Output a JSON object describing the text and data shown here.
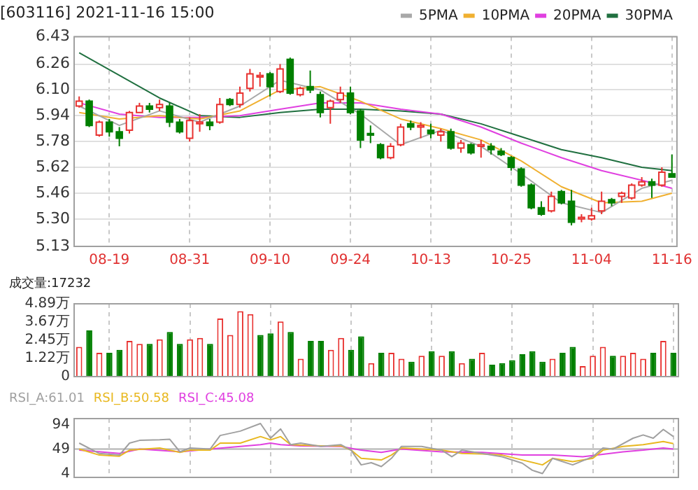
{
  "chart_data": [
    {
      "type": "candlestick",
      "title": "[603116] 2021-11-16 15:00",
      "legend": "top right",
      "grid": true,
      "categories": [
        null,
        null,
        null,
        "08-19",
        null,
        null,
        null,
        null,
        null,
        null,
        null,
        "08-31",
        null,
        null,
        null,
        null,
        null,
        null,
        null,
        "09-10",
        null,
        null,
        null,
        null,
        null,
        null,
        null,
        "09-24",
        null,
        null,
        null,
        null,
        null,
        null,
        null,
        "10-13",
        null,
        null,
        null,
        null,
        null,
        null,
        null,
        "10-25",
        null,
        null,
        null,
        null,
        null,
        null,
        null,
        "11-04",
        null,
        null,
        null,
        null,
        null,
        null,
        null,
        "11-16"
      ],
      "ylim": [
        5.13,
        6.43
      ],
      "yticks": [
        5.13,
        {
          "value": 5.3,
          "label": "5.30"
        },
        5.46,
        5.62,
        5.78,
        5.94,
        {
          "value": 6.1,
          "label": "6.10"
        },
        6.26,
        6.43
      ],
      "ohlc": [
        [
          6.0,
          6.06,
          5.99,
          6.03
        ],
        [
          6.03,
          6.04,
          5.87,
          5.88
        ],
        [
          5.82,
          5.91,
          5.81,
          5.9
        ],
        [
          5.9,
          5.92,
          5.81,
          5.84
        ],
        [
          5.84,
          5.87,
          5.75,
          5.8
        ],
        [
          5.85,
          5.97,
          5.83,
          5.96
        ],
        [
          5.96,
          6.02,
          5.96,
          6.0
        ],
        [
          6.0,
          6.02,
          5.96,
          5.98
        ],
        [
          5.99,
          6.04,
          5.97,
          6.01
        ],
        [
          6.0,
          6.02,
          5.87,
          5.9
        ],
        [
          5.9,
          5.92,
          5.83,
          5.84
        ],
        [
          5.8,
          5.93,
          5.78,
          5.91
        ],
        [
          5.89,
          5.95,
          5.84,
          5.9
        ],
        [
          5.9,
          5.92,
          5.85,
          5.88
        ],
        [
          5.9,
          6.05,
          5.89,
          6.01
        ],
        [
          6.04,
          6.05,
          6.0,
          6.01
        ],
        [
          6.01,
          6.12,
          5.99,
          6.08
        ],
        [
          6.11,
          6.23,
          6.09,
          6.2
        ],
        [
          6.18,
          6.21,
          6.12,
          6.19
        ],
        [
          6.2,
          6.21,
          6.06,
          6.12
        ],
        [
          6.09,
          6.26,
          6.08,
          6.23
        ],
        [
          6.29,
          6.3,
          6.07,
          6.08
        ],
        [
          6.07,
          6.12,
          6.06,
          6.11
        ],
        [
          6.12,
          6.22,
          6.08,
          6.1
        ],
        [
          6.07,
          6.09,
          5.93,
          5.96
        ],
        [
          5.99,
          6.04,
          5.89,
          6.03
        ],
        [
          6.04,
          6.12,
          6.02,
          6.08
        ],
        [
          6.08,
          6.12,
          5.95,
          5.96
        ],
        [
          5.97,
          5.98,
          5.74,
          5.79
        ],
        [
          5.83,
          5.88,
          5.77,
          5.82
        ],
        [
          5.76,
          5.77,
          5.67,
          5.68
        ],
        [
          5.68,
          5.77,
          5.67,
          5.75
        ],
        [
          5.76,
          5.89,
          5.75,
          5.87
        ],
        [
          5.89,
          5.91,
          5.85,
          5.87
        ],
        [
          5.87,
          5.9,
          5.8,
          5.88
        ],
        [
          5.85,
          5.89,
          5.8,
          5.83
        ],
        [
          5.82,
          5.86,
          5.78,
          5.84
        ],
        [
          5.84,
          5.86,
          5.73,
          5.74
        ],
        [
          5.74,
          5.79,
          5.71,
          5.77
        ],
        [
          5.76,
          5.77,
          5.7,
          5.71
        ],
        [
          5.75,
          5.79,
          5.68,
          5.76
        ],
        [
          5.75,
          5.77,
          5.7,
          5.73
        ],
        [
          5.72,
          5.74,
          5.69,
          5.7
        ],
        [
          5.68,
          5.69,
          5.6,
          5.62
        ],
        [
          5.61,
          5.62,
          5.5,
          5.51
        ],
        [
          5.51,
          5.52,
          5.36,
          5.37
        ],
        [
          5.37,
          5.41,
          5.32,
          5.33
        ],
        [
          5.35,
          5.47,
          5.34,
          5.44
        ],
        [
          5.47,
          5.48,
          5.39,
          5.4
        ],
        [
          5.41,
          5.48,
          5.26,
          5.28
        ],
        [
          5.3,
          5.33,
          5.28,
          5.31
        ],
        [
          5.3,
          5.37,
          5.29,
          5.32
        ],
        [
          5.35,
          5.47,
          5.33,
          5.41
        ],
        [
          5.42,
          5.43,
          5.38,
          5.4
        ],
        [
          5.44,
          5.47,
          5.4,
          5.46
        ],
        [
          5.43,
          5.52,
          5.42,
          5.51
        ],
        [
          5.51,
          5.56,
          5.5,
          5.53
        ],
        [
          5.53,
          5.55,
          5.43,
          5.51
        ],
        [
          5.51,
          5.62,
          5.5,
          5.59
        ],
        [
          5.58,
          5.7,
          5.56,
          5.56
        ]
      ],
      "series": [
        {
          "name": "5PMA",
          "type": "line",
          "color": "#a8a8a8",
          "values": [
            6.0,
            null,
            null,
            null,
            5.88,
            null,
            null,
            null,
            5.97,
            null,
            null,
            null,
            5.9,
            null,
            null,
            null,
            6.0,
            null,
            null,
            null,
            6.16,
            null,
            null,
            null,
            6.1,
            null,
            null,
            null,
            5.95,
            null,
            null,
            null,
            5.76,
            null,
            null,
            null,
            5.85,
            null,
            null,
            null,
            5.75,
            null,
            null,
            null,
            5.58,
            null,
            null,
            null,
            5.4,
            null,
            null,
            null,
            5.34,
            null,
            null,
            null,
            5.49,
            null,
            null,
            5.54
          ]
        },
        {
          "name": "10PMA",
          "type": "line",
          "color": "#f0b030",
          "values": [
            5.96,
            null,
            null,
            null,
            5.92,
            null,
            null,
            null,
            5.94,
            null,
            null,
            null,
            5.92,
            null,
            null,
            null,
            5.97,
            null,
            null,
            null,
            6.1,
            null,
            null,
            null,
            6.12,
            null,
            null,
            null,
            6.03,
            null,
            null,
            null,
            5.92,
            null,
            null,
            null,
            5.86,
            null,
            null,
            null,
            5.79,
            null,
            null,
            null,
            5.66,
            null,
            null,
            null,
            5.5,
            null,
            null,
            null,
            5.4,
            null,
            null,
            null,
            5.41,
            null,
            null,
            5.46
          ]
        },
        {
          "name": "20PMA",
          "type": "line",
          "color": "#e040e0",
          "values": [
            6.02,
            null,
            null,
            null,
            5.95,
            null,
            null,
            null,
            5.93,
            null,
            null,
            null,
            5.93,
            null,
            null,
            null,
            5.94,
            null,
            null,
            null,
            5.98,
            null,
            null,
            null,
            6.02,
            null,
            null,
            null,
            6.02,
            null,
            null,
            null,
            5.98,
            null,
            null,
            null,
            5.95,
            null,
            null,
            null,
            5.87,
            null,
            null,
            null,
            5.77,
            null,
            null,
            null,
            5.68,
            null,
            null,
            null,
            5.6,
            null,
            null,
            null,
            5.54,
            null,
            null,
            5.49
          ]
        },
        {
          "name": "30PMA",
          "type": "line",
          "color": "#207040",
          "values": [
            6.33,
            null,
            null,
            null,
            6.19,
            null,
            null,
            null,
            6.05,
            null,
            null,
            null,
            5.94,
            null,
            null,
            null,
            5.93,
            null,
            null,
            null,
            5.96,
            null,
            null,
            null,
            5.98,
            null,
            null,
            null,
            5.98,
            null,
            null,
            null,
            5.97,
            null,
            null,
            null,
            5.95,
            null,
            null,
            null,
            5.89,
            null,
            null,
            null,
            5.81,
            null,
            null,
            null,
            5.73,
            null,
            null,
            null,
            5.68,
            null,
            null,
            null,
            5.62,
            null,
            null,
            5.6
          ]
        }
      ]
    },
    {
      "type": "bar",
      "legend": "top left",
      "grid": "x",
      "tick_labels": "y",
      "categories": [
        null,
        null,
        null,
        null,
        null,
        null,
        null,
        null,
        null,
        null,
        null,
        null,
        null,
        null,
        null,
        null,
        null,
        null,
        null,
        null,
        null,
        null,
        null,
        null,
        null,
        null,
        null,
        null,
        null,
        null,
        null,
        null,
        null,
        null,
        null,
        null,
        null,
        null,
        null,
        null,
        null,
        null,
        null,
        null,
        null,
        null,
        null,
        null,
        null,
        null,
        null,
        null,
        null,
        null,
        null,
        null,
        null,
        null,
        null,
        null
      ],
      "ylim": [
        0,
        4.89
      ],
      "yticks": [
        0,
        {
          "value": 1.22,
          "label": "1.22万"
        },
        {
          "value": 2.45,
          "label": "2.45万"
        },
        {
          "value": 3.67,
          "label": "3.67万"
        },
        {
          "value": 4.89,
          "label": "4.89万"
        }
      ],
      "series": [
        {
          "name": "成交量:17232",
          "color": "#222222",
          "colors": [
            "#e8312f",
            "#007f00",
            "#e8312f",
            "#007f00",
            "#007f00",
            "#e8312f",
            "#e8312f",
            "#007f00",
            "#e8312f",
            "#007f00",
            "#007f00",
            "#e8312f",
            "#e8312f",
            "#007f00",
            "#e8312f",
            "#e8312f",
            "#e8312f",
            "#e8312f",
            "#007f00",
            "#007f00",
            "#e8312f",
            "#007f00",
            "#e8312f",
            "#007f00",
            "#007f00",
            "#e8312f",
            "#e8312f",
            "#007f00",
            "#007f00",
            "#e8312f",
            "#007f00",
            "#e8312f",
            "#e8312f",
            "#007f00",
            "#e8312f",
            "#007f00",
            "#e8312f",
            "#007f00",
            "#e8312f",
            "#007f00",
            "#e8312f",
            "#007f00",
            "#007f00",
            "#007f00",
            "#007f00",
            "#007f00",
            "#007f00",
            "#e8312f",
            "#007f00",
            "#007f00",
            "#e8312f",
            "#e8312f",
            "#e8312f",
            "#007f00",
            "#e8312f",
            "#e8312f",
            "#e8312f",
            "#007f00",
            "#e8312f",
            "#007f00"
          ],
          "values": [
            2.0,
            3.1,
            1.6,
            1.6,
            1.8,
            2.4,
            2.2,
            2.2,
            2.5,
            3.0,
            2.2,
            2.5,
            2.6,
            2.2,
            3.9,
            2.8,
            4.4,
            4.2,
            2.8,
            2.9,
            3.7,
            3.0,
            1.2,
            2.4,
            2.4,
            1.8,
            2.6,
            1.8,
            2.7,
            0.9,
            1.6,
            1.6,
            1.2,
            1.0,
            1.4,
            1.7,
            1.4,
            1.7,
            0.9,
            1.2,
            1.6,
            0.8,
            0.9,
            1.1,
            1.5,
            1.7,
            1.0,
            1.2,
            1.6,
            2.0,
            0.7,
            1.4,
            2.0,
            1.4,
            1.4,
            1.6,
            1.2,
            1.6,
            2.4,
            1.6
          ]
        }
      ]
    },
    {
      "type": "line",
      "legend": "top left",
      "grid": "x",
      "tick_labels": "y",
      "categories": [
        null,
        null,
        null,
        null,
        null,
        null,
        null,
        null,
        null,
        null,
        null,
        null,
        null,
        null,
        null,
        null,
        null,
        null,
        null,
        null,
        null,
        null,
        null,
        null,
        null,
        null,
        null,
        null,
        null,
        null,
        null,
        null,
        null,
        null,
        null,
        null,
        null,
        null,
        null,
        null,
        null,
        null,
        null,
        null,
        null,
        null,
        null,
        null,
        null,
        null,
        null,
        null,
        null,
        null,
        null,
        null,
        null,
        null,
        null,
        null
      ],
      "ylim": [
        -3,
        105
      ],
      "yticks": [
        4,
        49,
        94
      ],
      "ref_lines": [
        {
          "axis": "y",
          "value": 49,
          "color": "#b0b0b0"
        }
      ],
      "series": [
        {
          "name": "RSI_A:61.01",
          "color": "#a0a0a0",
          "values": [
            60,
            null,
            41,
            null,
            38,
            60,
            65,
            null,
            66,
            67,
            44,
            51,
            null,
            49,
            74,
            null,
            82,
            null,
            96,
            69,
            86,
            57,
            60,
            null,
            54,
            null,
            57,
            47,
            20,
            24,
            17,
            32,
            54,
            null,
            54,
            null,
            47,
            35,
            47,
            null,
            41,
            null,
            35,
            null,
            23,
            10,
            4,
            32,
            null,
            20,
            null,
            35,
            51,
            49,
            null,
            69,
            75,
            69,
            85,
            72
          ]
        },
        {
          "name": "RSI_B:50.58",
          "color": "#e8b820",
          "values": [
            49,
            null,
            38,
            null,
            36,
            47,
            null,
            null,
            51,
            null,
            43,
            47,
            null,
            47,
            60,
            null,
            60,
            null,
            72,
            66,
            72,
            57,
            null,
            null,
            55,
            null,
            55,
            47,
            32,
            null,
            29,
            38,
            51,
            null,
            null,
            null,
            47,
            null,
            41,
            null,
            40,
            null,
            38,
            null,
            29,
            null,
            20,
            32,
            null,
            26,
            null,
            32,
            47,
            null,
            54,
            null,
            57,
            null,
            63,
            59
          ]
        },
        {
          "name": "RSI_C:45.08",
          "color": "#e040e0",
          "values": [
            47,
            null,
            null,
            null,
            41,
            null,
            49,
            null,
            null,
            null,
            44,
            null,
            null,
            49,
            null,
            null,
            54,
            null,
            57,
            60,
            57,
            null,
            55,
            null,
            null,
            null,
            54,
            null,
            47,
            null,
            43,
            null,
            49,
            null,
            null,
            null,
            44,
            null,
            null,
            null,
            43,
            null,
            null,
            null,
            38,
            null,
            null,
            38,
            null,
            null,
            35,
            null,
            null,
            null,
            44,
            null,
            47,
            null,
            51,
            49
          ]
        }
      ]
    }
  ]
}
